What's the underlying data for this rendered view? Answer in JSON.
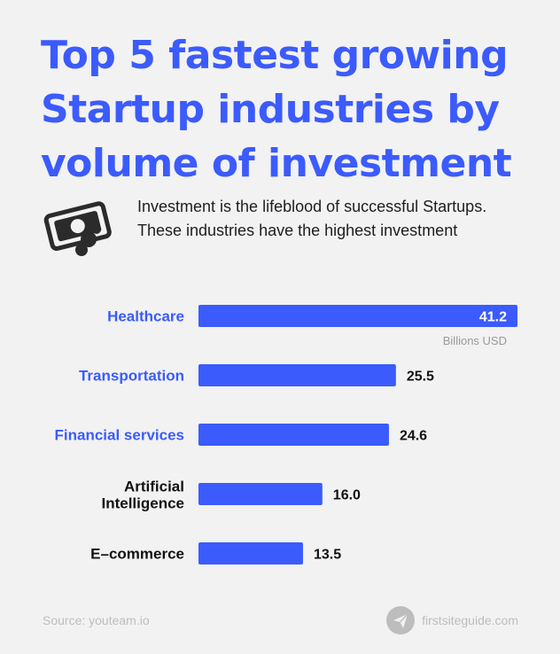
{
  "header": {
    "title": "Top 5 fastest growing Startup industries by volume of investment"
  },
  "intro": {
    "text": "Investment is the lifeblood of successful Startups. These industries have the highest investment",
    "icon": "money-icon"
  },
  "colors": {
    "bar": "#3b5bfd",
    "highlight_label": "#3b5bfd",
    "label": "#111111",
    "unit": "#999999"
  },
  "chart_data": {
    "type": "bar",
    "orientation": "horizontal",
    "categories": [
      "Healthcare",
      "Transportation",
      "Financial services",
      "Artificial Intelligence",
      "E–commerce"
    ],
    "values": [
      41.2,
      25.5,
      24.6,
      16.0,
      13.5
    ],
    "value_labels": [
      "41.2",
      "25.5",
      "24.6",
      "16.0",
      "13.5"
    ],
    "highlighted": [
      true,
      true,
      true,
      false,
      false
    ],
    "unit": "Billions USD",
    "xlim": [
      0,
      41.2
    ],
    "grid": false,
    "legend": "none"
  },
  "footer": {
    "source": "Source: youteam.io",
    "brand": "firstsiteguide.com",
    "brand_icon": "paper-plane-icon"
  }
}
